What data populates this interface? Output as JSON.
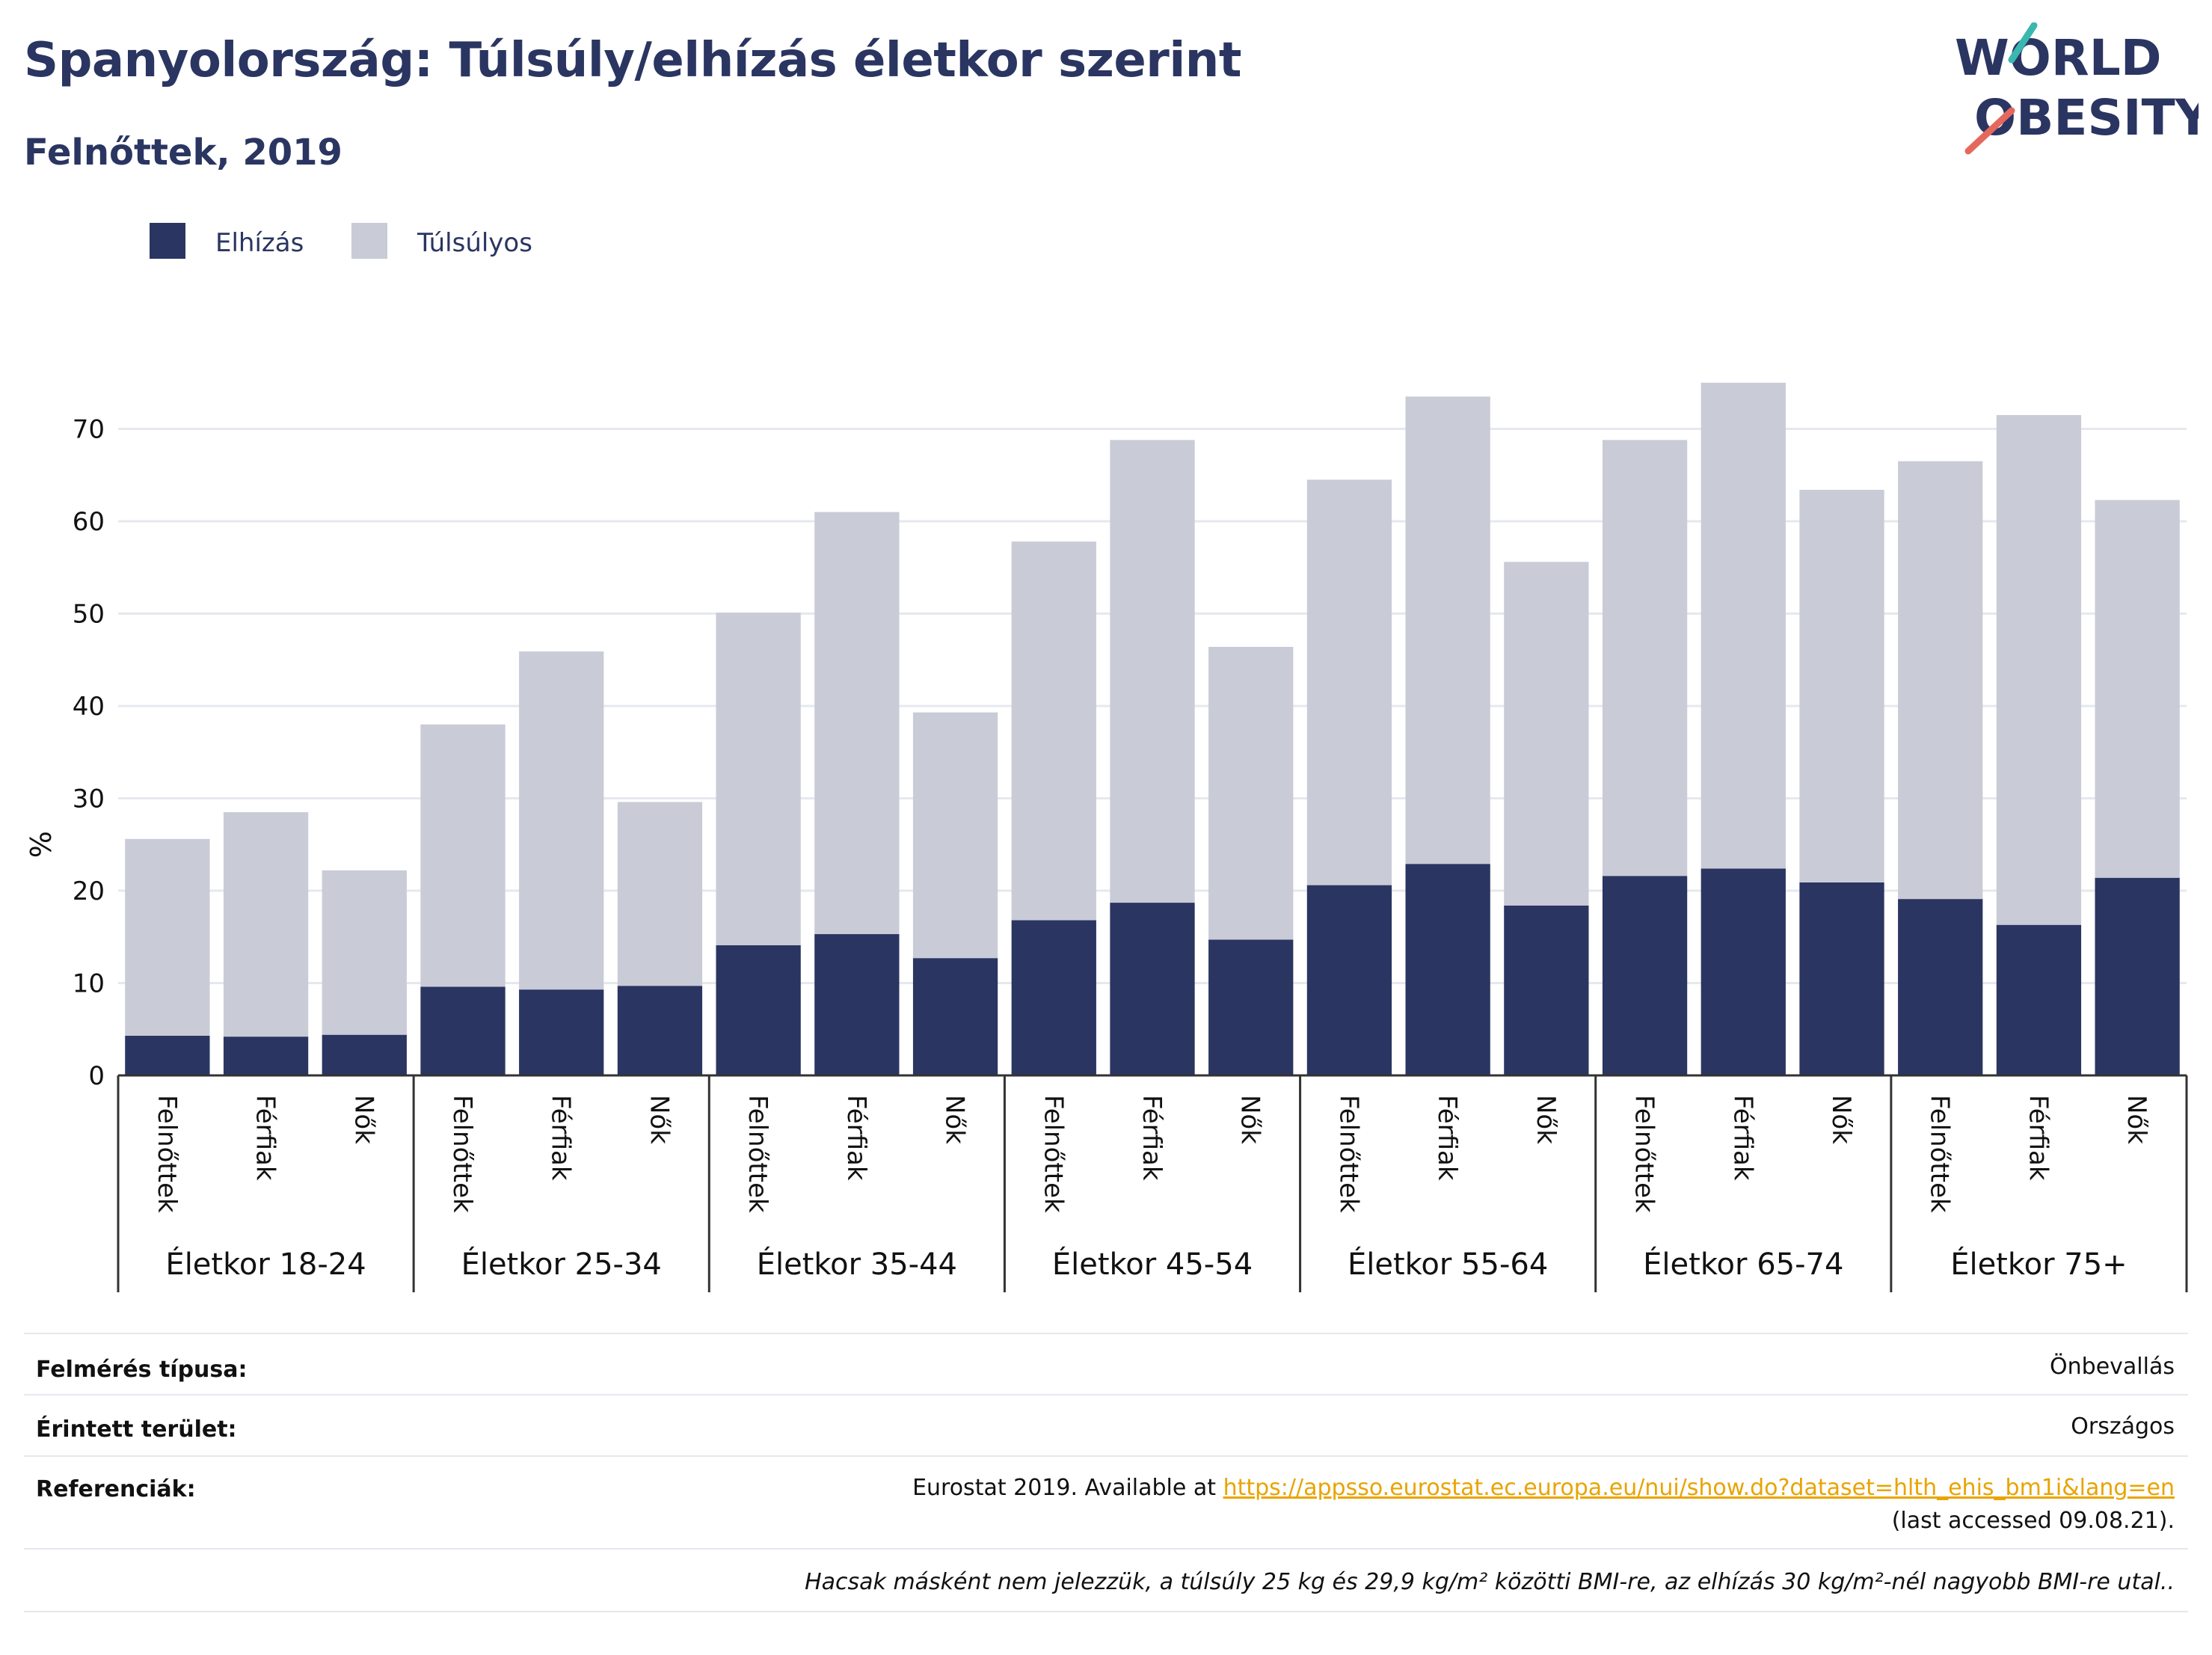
{
  "title": "Spanyolország: Túlsúly/elhízás életkor szerint",
  "subtitle": "Felnőttek, 2019",
  "logo": {
    "line1": "WORLD",
    "line2": "OBESITY"
  },
  "colors": {
    "obese": "#2a3561",
    "overweight": "#c9cbd7",
    "grid": "#e6e8ef",
    "axis": "#333333",
    "logo_teal": "#3ab7b0",
    "logo_red": "#e5685c"
  },
  "chart_data": {
    "type": "bar",
    "stacked": true,
    "ylabel": "%",
    "ylim": [
      0,
      80
    ],
    "yticks": [
      0,
      10,
      20,
      30,
      40,
      50,
      60,
      70
    ],
    "grid": true,
    "legend_position": "top-left",
    "groups": [
      "Életkor 18-24",
      "Életkor 25-34",
      "Életkor 35-44",
      "Életkor 45-54",
      "Életkor 55-64",
      "Életkor 65-74",
      "Életkor 75+"
    ],
    "subcategories": [
      "Felnőttek",
      "Férfiak",
      "Nők"
    ],
    "series": [
      {
        "name": "Elhízás",
        "values": [
          4.3,
          4.2,
          4.4,
          9.6,
          9.3,
          9.7,
          14.1,
          15.3,
          12.7,
          16.8,
          18.7,
          14.7,
          20.6,
          22.9,
          18.4,
          21.6,
          22.4,
          20.9,
          19.1,
          16.3,
          21.4
        ]
      },
      {
        "name": "Túlsúlyos",
        "values": [
          21.3,
          24.3,
          17.8,
          28.4,
          36.6,
          19.9,
          36.0,
          45.7,
          26.6,
          41.0,
          50.1,
          31.7,
          43.9,
          50.6,
          37.2,
          47.2,
          52.6,
          42.5,
          47.4,
          55.2,
          40.9
        ]
      }
    ]
  },
  "info": {
    "survey_type_label": "Felmérés típusa:",
    "survey_type_value": "Önbevallás",
    "area_label": "Érintett terület:",
    "area_value": "Országos",
    "references_label": "Referenciák:",
    "references_prefix": "Eurostat 2019. Available at ",
    "references_link": "https://appsso.eurostat.ec.europa.eu/nui/show.do?dataset=hlth_ehis_bm1i&lang=en",
    "references_suffix": " (last accessed 09.08.21).",
    "note": "Hacsak másként nem jelezzük, a túlsúly 25 kg és 29,9 kg/m² közötti BMI-re, az elhízás 30 kg/m²-nél nagyobb BMI-re utal.."
  }
}
